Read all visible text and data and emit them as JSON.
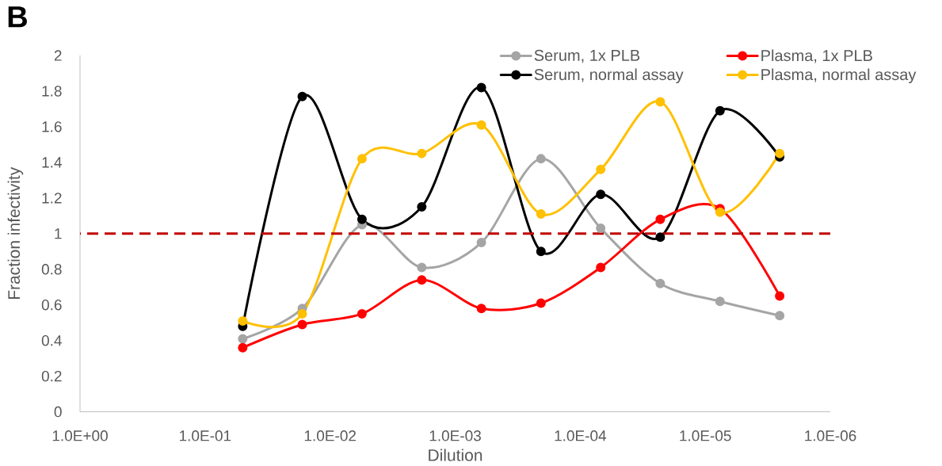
{
  "chart_data": {
    "type": "line",
    "title": "B",
    "xlabel": "Dilution",
    "ylabel": "Fraction infectivity",
    "x": [
      0.05,
      0.0167,
      0.00556,
      0.00185,
      0.000617,
      0.000206,
      6.86e-05,
      2.29e-05,
      7.62e-06,
      2.54e-06
    ],
    "series": [
      {
        "name": "Serum, 1x PLB",
        "color": "#a5a5a5",
        "values": [
          0.41,
          0.58,
          1.05,
          0.81,
          0.95,
          1.42,
          1.03,
          0.72,
          0.62,
          0.54
        ]
      },
      {
        "name": "Serum, normal assay",
        "color": "#000000",
        "values": [
          0.48,
          1.77,
          1.08,
          1.15,
          1.82,
          0.9,
          1.22,
          0.98,
          1.69,
          1.43
        ]
      },
      {
        "name": "Plasma, 1x PLB",
        "color": "#ff0000",
        "values": [
          0.36,
          0.49,
          0.55,
          0.74,
          0.58,
          0.61,
          0.81,
          1.08,
          1.14,
          0.65
        ]
      },
      {
        "name": "Plasma, normal assay",
        "color": "#ffc000",
        "values": [
          0.51,
          0.55,
          1.42,
          1.45,
          1.61,
          1.11,
          1.36,
          1.74,
          1.12,
          1.45
        ]
      }
    ],
    "xlim": [
      1,
      1e-06
    ],
    "ylim": [
      0,
      2
    ],
    "xticks": [
      {
        "value": 1,
        "label": "1.0E+00"
      },
      {
        "value": 0.1,
        "label": "1.0E-01"
      },
      {
        "value": 0.01,
        "label": "1.0E-02"
      },
      {
        "value": 0.001,
        "label": "1.0E-03"
      },
      {
        "value": 0.0001,
        "label": "1.0E-04"
      },
      {
        "value": 1e-05,
        "label": "1.0E-05"
      },
      {
        "value": 1e-06,
        "label": "1.0E-06"
      }
    ],
    "yticks": [
      0,
      0.2,
      0.4,
      0.6,
      0.8,
      1,
      1.2,
      1.4,
      1.6,
      1.8,
      2
    ],
    "log": "x",
    "legend": "top right",
    "marker": "circle",
    "line_style": "solid",
    "ref_lines": [
      {
        "axis": "y",
        "value": 1,
        "color": "#c00000",
        "line_style": "dashed"
      }
    ]
  }
}
